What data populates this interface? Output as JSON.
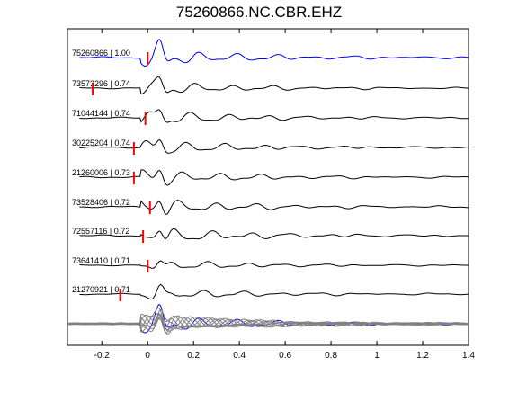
{
  "chart_data": {
    "type": "line",
    "title": "75260866.NC.CBR.EHZ",
    "xlabel": "",
    "ylabel": "",
    "xlim": [
      -0.35,
      1.4
    ],
    "xticks": [
      -0.2,
      0,
      0.2,
      0.4,
      0.6,
      0.8,
      1,
      1.2,
      1.4
    ],
    "xtick_labels": [
      "-0.2",
      "0",
      "0.2",
      "0.4",
      "0.6",
      "0.8",
      "1",
      "1.2",
      "1.4"
    ],
    "grid": false,
    "colors": {
      "reference": "#0000ff",
      "trace": "#000000",
      "pick": "#ff0000",
      "overlay": "#808080"
    },
    "traces": [
      {
        "label": "75260866 | 1.00",
        "pick": 0.0,
        "amp": 0.85,
        "reference": true
      },
      {
        "label": "73573296 | 0.74",
        "pick": -0.24,
        "amp": 0.65
      },
      {
        "label": "71044144 | 0.74",
        "pick": -0.01,
        "amp": 0.7
      },
      {
        "label": "30225204 | 0.74",
        "pick": -0.06,
        "amp": 0.7
      },
      {
        "label": "21260006 | 0.73",
        "pick": -0.06,
        "amp": 0.7
      },
      {
        "label": "73528406 | 0.72",
        "pick": 0.01,
        "amp": 0.75
      },
      {
        "label": "72557116 | 0.72",
        "pick": -0.02,
        "amp": 0.8
      },
      {
        "label": "73641410 | 0.71",
        "pick": 0.0,
        "amp": 0.55
      },
      {
        "label": "21270921 | 0.71",
        "pick": -0.12,
        "amp": 0.6
      }
    ],
    "overlay": {
      "description": "stacked overlay of all traces",
      "reference_color": "#0000ff",
      "others_color": "#808080"
    }
  }
}
